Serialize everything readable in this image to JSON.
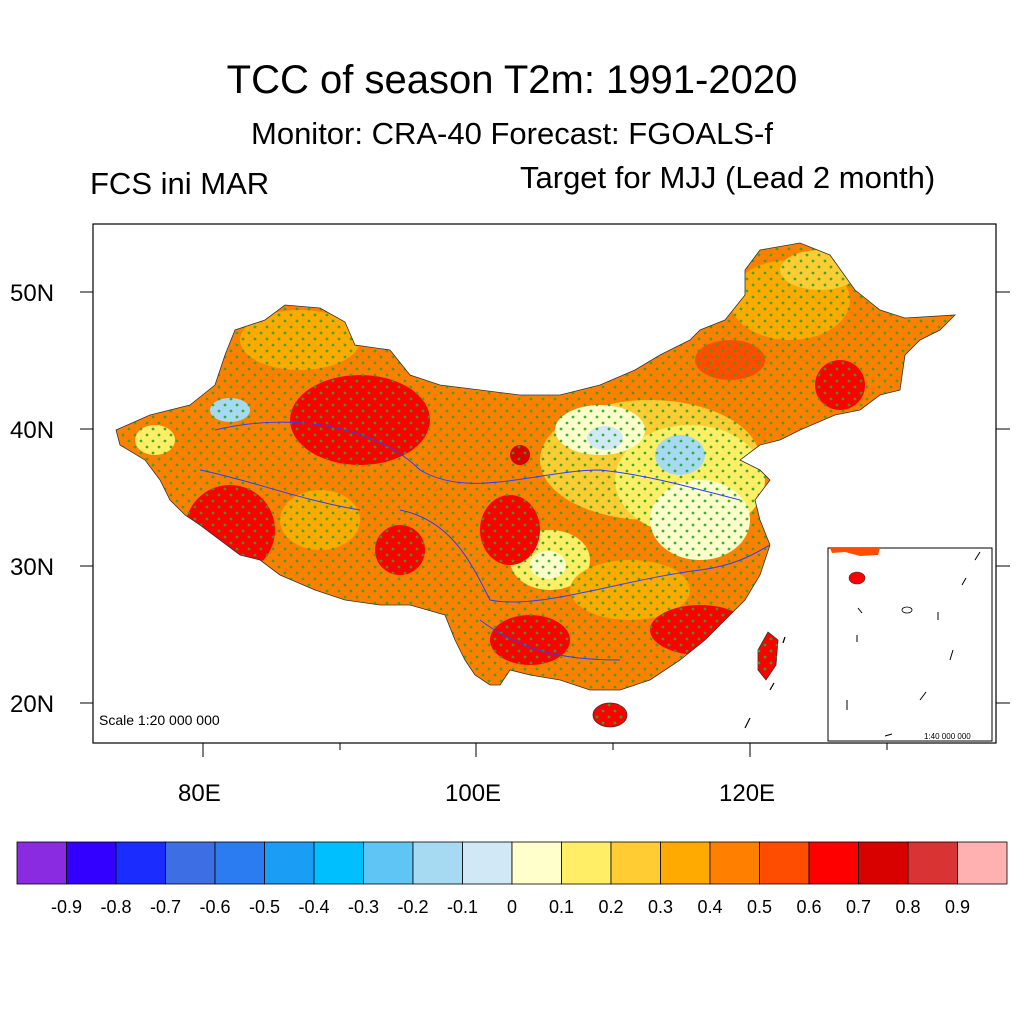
{
  "title": "TCC of season T2m: 1991-2020",
  "subtitle": "Monitor: CRA-40   Forecast: FGOALS-f",
  "left_string": "FCS ini MAR",
  "right_string": "Target for MJJ (Lead 2 month)",
  "map": {
    "lat_labels": [
      "50N",
      "40N",
      "30N",
      "20N"
    ],
    "lon_labels": [
      "80E",
      "100E",
      "120E"
    ],
    "scale_main": "Scale 1:20 000 000",
    "scale_inset": "1:40 000 000",
    "region": "China"
  },
  "colorbar": {
    "colors": [
      "#8a2be2",
      "#3300ff",
      "#1a2cff",
      "#3e6ee3",
      "#2a7cf0",
      "#1a9ef5",
      "#00bfff",
      "#5ec5f5",
      "#a6d9f2",
      "#d1e9f6",
      "#ffffcc",
      "#ffee66",
      "#ffcc33",
      "#ffaa00",
      "#ff8000",
      "#ff4d00",
      "#ff0000",
      "#d90000",
      "#d93333",
      "#ffb0b0"
    ],
    "labels": [
      "-0.9",
      "-0.8",
      "-0.7",
      "-0.6",
      "-0.5",
      "-0.4",
      "-0.3",
      "-0.2",
      "-0.1",
      "0",
      "0.1",
      "0.2",
      "0.3",
      "0.4",
      "0.5",
      "0.6",
      "0.7",
      "0.8",
      "0.9"
    ]
  },
  "stipple_color": "#22aa22"
}
